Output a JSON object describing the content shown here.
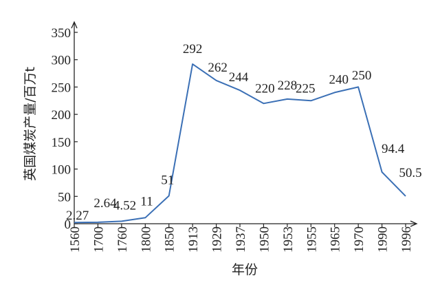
{
  "chart_data": {
    "type": "line",
    "categories": [
      "1560",
      "1700",
      "1760",
      "1800",
      "1850",
      "1913",
      "1929",
      "1937",
      "1950",
      "1953",
      "1955",
      "1965",
      "1970",
      "1990",
      "1996"
    ],
    "values": [
      2.27,
      2.64,
      4.52,
      11,
      51,
      292,
      262,
      244,
      220,
      228,
      225,
      240,
      250,
      94.4,
      50.5
    ],
    "data_labels": [
      "2.27",
      "2.64",
      "4.52",
      "11",
      "51",
      "292",
      "262",
      "244",
      "220",
      "228",
      "225",
      "240",
      "250",
      "94.4",
      "50.5"
    ],
    "xlabel": "年份",
    "ylabel": "英国煤炭产量/百万t",
    "ylim": [
      0,
      350
    ],
    "yticks": [
      0,
      50,
      100,
      150,
      200,
      250,
      300,
      350
    ],
    "grid": false,
    "colors": {
      "line": "#3a6fb5",
      "axis": "#222222"
    }
  }
}
